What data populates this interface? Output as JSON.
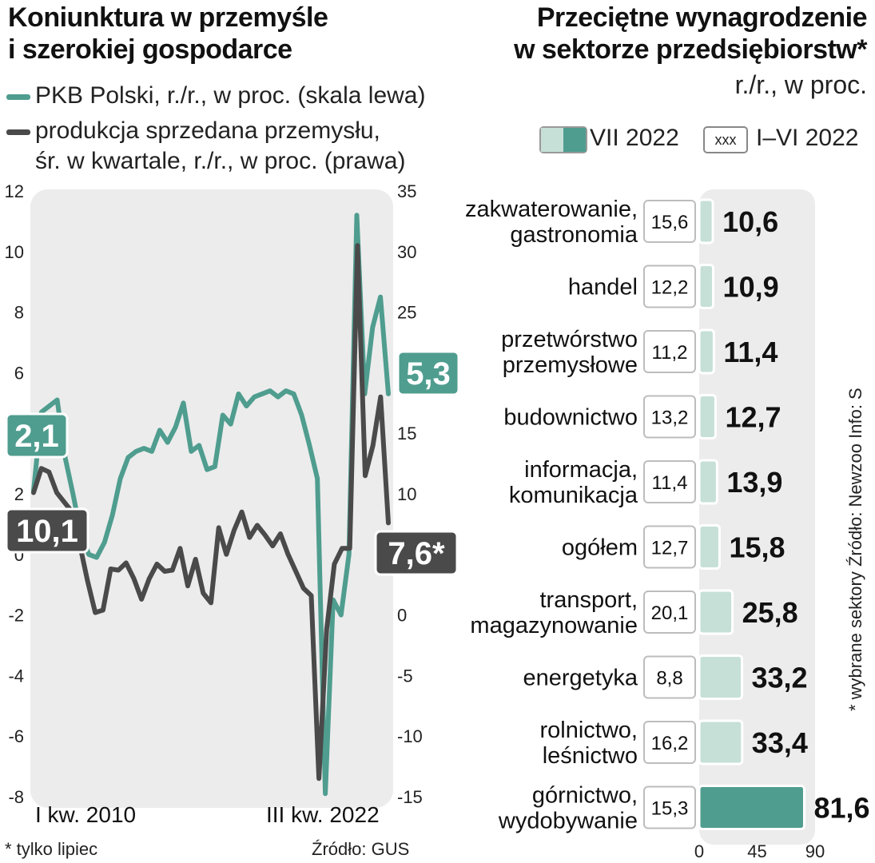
{
  "left": {
    "title_line1": "Koniunktura w przemyśle",
    "title_line2": "i szerokiej gospodarce",
    "legend": {
      "pkb": "PKB Polski, r./r., w proc. (skala lewa)",
      "prod_line1": "produkcja sprzedana przemysłu,",
      "prod_line2": "śr. w kwartale, r./r., w proc. (prawa)"
    },
    "footnote": "* tylko lipiec",
    "source": "Źródło: GUS"
  },
  "right": {
    "title_line1": "Przeciętne wynagrodzenie",
    "title_line2": "w sektorze przedsiębiorstw*",
    "subtitle": "r./r., w proc.",
    "legend_current": "VII 2022",
    "legend_prev_mark": "xxx",
    "legend_prev": "I–VI 2022",
    "side_note": "* wybrane sektory   Źródło: Newzoo   Info: S"
  },
  "colors": {
    "teal": "#4f9d8f",
    "teal_light": "#c6e0d8",
    "dark": "#4a4a4a",
    "panel": "#ececec"
  },
  "chart_data": [
    {
      "type": "line",
      "x_first_label": "I kw. 2010",
      "x_last_label": "III kw. 2022",
      "left_axis": {
        "ylim": [
          -8,
          12
        ],
        "ticks": [
          "12",
          "10",
          "8",
          "6",
          "4",
          "2",
          "0",
          "-2",
          "-4",
          "-6",
          "-8"
        ]
      },
      "right_axis": {
        "ylim": [
          -15,
          35
        ],
        "ticks": [
          "35",
          "30",
          "25",
          "20",
          "15",
          "10",
          "5",
          "0",
          "-5",
          "-10",
          "-15"
        ]
      },
      "series": [
        {
          "name": "PKB Polski, r./r., w proc. (skala lewa)",
          "axis": "left",
          "color": "#4f9d8f",
          "values": [
            2.1,
            4.7,
            4.9,
            5.1,
            3.2,
            2.0,
            0.7,
            0.0,
            -0.1,
            0.4,
            1.3,
            2.5,
            3.2,
            3.4,
            3.5,
            3.4,
            4.1,
            3.7,
            4.2,
            5.0,
            3.4,
            3.6,
            2.8,
            2.9,
            4.6,
            4.3,
            5.3,
            4.9,
            5.2,
            5.3,
            5.4,
            5.2,
            5.4,
            5.3,
            4.6,
            3.6,
            2.5,
            -7.9,
            -1.5,
            -2.0,
            0.0,
            11.2,
            5.3,
            7.5,
            8.5,
            5.3
          ],
          "end_label": "5,3",
          "start_label": "2,1"
        },
        {
          "name": "produkcja sprzedana przemysłu, śr. w kwartale, r./r., w proc. (prawa)",
          "axis": "right",
          "color": "#4a4a4a",
          "values": [
            10.1,
            12.1,
            11.8,
            10.1,
            9.3,
            8.5,
            5.8,
            2.8,
            0.2,
            0.4,
            3.8,
            3.7,
            4.3,
            3.0,
            1.3,
            3.0,
            4.2,
            3.6,
            3.7,
            5.5,
            2.4,
            4.6,
            1.8,
            1.0,
            7.2,
            5.0,
            7.0,
            8.5,
            6.4,
            7.4,
            6.6,
            5.7,
            6.7,
            5.0,
            3.6,
            2.2,
            1.6,
            -13.5,
            -1.2,
            4.2,
            5.5,
            5.5,
            30.5,
            11.5,
            14.0,
            18.0,
            7.6
          ],
          "end_label": "7,6*",
          "start_label": "10,1"
        }
      ]
    },
    {
      "type": "bar",
      "orientation": "horizontal",
      "xlim": [
        0,
        90
      ],
      "x_ticks": [
        "0",
        "45",
        "90"
      ],
      "categories": [
        [
          "zakwaterowanie,",
          "gastronomia"
        ],
        [
          "handel"
        ],
        [
          "przetwórstwo",
          "przemysłowe"
        ],
        [
          "budownictwo"
        ],
        [
          "informacja,",
          "komunikacja"
        ],
        [
          "ogółem"
        ],
        [
          "transport,",
          "magazynowanie"
        ],
        [
          "energetyka"
        ],
        [
          "rolnictwo,",
          "leśnictwo"
        ],
        [
          "górnictwo,",
          "wydobywanie"
        ]
      ],
      "series": [
        {
          "name": "VII 2022",
          "values": [
            10.6,
            10.9,
            11.4,
            12.7,
            13.9,
            15.8,
            25.8,
            33.2,
            33.4,
            81.6
          ],
          "labels": [
            "10,6",
            "10,9",
            "11,4",
            "12,7",
            "13,9",
            "15,8",
            "25,8",
            "33,2",
            "33,4",
            "81,6"
          ]
        },
        {
          "name": "I–VI 2022",
          "values": [
            15.6,
            12.2,
            11.2,
            13.2,
            11.4,
            12.7,
            20.1,
            8.8,
            16.2,
            15.3
          ],
          "labels": [
            "15,6",
            "12,2",
            "11,2",
            "13,2",
            "11,4",
            "12,7",
            "20,1",
            "8,8",
            "16,2",
            "15,3"
          ]
        }
      ]
    }
  ]
}
